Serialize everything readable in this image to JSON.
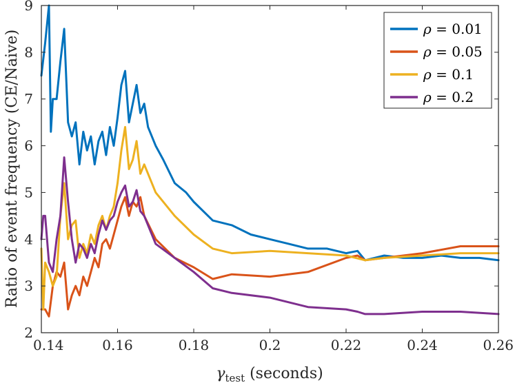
{
  "chart_data": {
    "type": "line",
    "title": "",
    "xlabel_symbol": "γ",
    "xlabel_sub": "test",
    "xlabel_rest": " (seconds)",
    "ylabel": "Ratio of event frequency (CE/Naive)",
    "xlim": [
      0.14,
      0.26
    ],
    "ylim": [
      2,
      9
    ],
    "xticks": [
      "0.14",
      "0.16",
      "0.18",
      "0.2",
      "0.22",
      "0.24",
      "0.26"
    ],
    "xtick_values": [
      0.14,
      0.16,
      0.18,
      0.2,
      0.22,
      0.24,
      0.26
    ],
    "yticks": [
      "2",
      "3",
      "4",
      "5",
      "6",
      "7",
      "8",
      "9"
    ],
    "ytick_values": [
      2,
      3,
      4,
      5,
      6,
      7,
      8,
      9
    ],
    "grid": false,
    "legend_position": "top-right",
    "series": [
      {
        "name": "ρ = 0.01",
        "legend_symbol": "ρ",
        "legend_value": " = 0.01",
        "color": "#0072BD",
        "x": [
          0.14,
          0.141,
          0.142,
          0.1425,
          0.143,
          0.144,
          0.145,
          0.146,
          0.147,
          0.148,
          0.149,
          0.15,
          0.151,
          0.152,
          0.153,
          0.154,
          0.155,
          0.156,
          0.157,
          0.158,
          0.159,
          0.16,
          0.161,
          0.162,
          0.163,
          0.164,
          0.165,
          0.166,
          0.167,
          0.168,
          0.17,
          0.172,
          0.175,
          0.178,
          0.18,
          0.185,
          0.19,
          0.195,
          0.2,
          0.205,
          0.21,
          0.215,
          0.22,
          0.223,
          0.225,
          0.23,
          0.235,
          0.24,
          0.245,
          0.25,
          0.255,
          0.26
        ],
        "values": [
          7.5,
          8.2,
          9.0,
          6.3,
          7.0,
          7.0,
          7.8,
          8.5,
          6.5,
          6.2,
          6.5,
          5.6,
          6.3,
          5.9,
          6.2,
          5.6,
          6.1,
          6.3,
          5.8,
          6.4,
          6.0,
          6.6,
          7.3,
          7.6,
          6.5,
          6.9,
          7.3,
          6.7,
          6.9,
          6.4,
          6.0,
          5.7,
          5.2,
          5.0,
          4.8,
          4.4,
          4.3,
          4.1,
          4.0,
          3.9,
          3.8,
          3.8,
          3.7,
          3.75,
          3.55,
          3.65,
          3.6,
          3.6,
          3.65,
          3.6,
          3.6,
          3.55
        ]
      },
      {
        "name": "ρ = 0.05",
        "legend_symbol": "ρ",
        "legend_value": " = 0.05",
        "color": "#D95319",
        "x": [
          0.14,
          0.141,
          0.142,
          0.143,
          0.144,
          0.145,
          0.146,
          0.147,
          0.148,
          0.149,
          0.15,
          0.151,
          0.152,
          0.153,
          0.154,
          0.155,
          0.156,
          0.157,
          0.158,
          0.159,
          0.16,
          0.161,
          0.162,
          0.163,
          0.164,
          0.165,
          0.166,
          0.167,
          0.17,
          0.175,
          0.18,
          0.185,
          0.19,
          0.2,
          0.21,
          0.22,
          0.223,
          0.225,
          0.23,
          0.24,
          0.25,
          0.26
        ],
        "values": [
          2.5,
          2.5,
          2.35,
          3.0,
          3.3,
          3.2,
          3.5,
          2.5,
          2.8,
          3.0,
          2.8,
          3.2,
          3.0,
          3.3,
          3.6,
          3.4,
          3.9,
          4.0,
          3.8,
          4.1,
          4.4,
          4.7,
          4.9,
          4.5,
          4.8,
          4.7,
          4.9,
          4.5,
          4.0,
          3.6,
          3.4,
          3.15,
          3.25,
          3.2,
          3.3,
          3.6,
          3.65,
          3.55,
          3.6,
          3.7,
          3.85,
          3.85
        ]
      },
      {
        "name": "ρ = 0.1",
        "legend_symbol": "ρ",
        "legend_value": " = 0.1",
        "color": "#EDB120",
        "x": [
          0.14,
          0.1405,
          0.141,
          0.142,
          0.143,
          0.144,
          0.145,
          0.146,
          0.147,
          0.148,
          0.149,
          0.15,
          0.151,
          0.152,
          0.153,
          0.154,
          0.155,
          0.156,
          0.157,
          0.158,
          0.159,
          0.16,
          0.161,
          0.162,
          0.163,
          0.164,
          0.165,
          0.166,
          0.167,
          0.17,
          0.175,
          0.18,
          0.185,
          0.19,
          0.2,
          0.21,
          0.22,
          0.225,
          0.23,
          0.24,
          0.25,
          0.26
        ],
        "values": [
          3.8,
          2.5,
          3.5,
          3.3,
          3.0,
          3.2,
          4.5,
          5.2,
          4.0,
          4.3,
          4.4,
          3.6,
          3.9,
          3.7,
          4.1,
          3.9,
          4.3,
          4.5,
          4.2,
          4.5,
          4.7,
          5.2,
          5.9,
          6.4,
          5.5,
          5.7,
          6.1,
          5.4,
          5.6,
          5.0,
          4.5,
          4.1,
          3.8,
          3.7,
          3.75,
          3.7,
          3.65,
          3.55,
          3.6,
          3.65,
          3.7,
          3.7
        ]
      },
      {
        "name": "ρ = 0.2",
        "legend_symbol": "ρ",
        "legend_value": " = 0.2",
        "color": "#7E2F8E",
        "x": [
          0.14,
          0.1405,
          0.141,
          0.142,
          0.143,
          0.144,
          0.145,
          0.146,
          0.147,
          0.148,
          0.149,
          0.15,
          0.151,
          0.152,
          0.153,
          0.154,
          0.155,
          0.156,
          0.157,
          0.158,
          0.159,
          0.16,
          0.161,
          0.162,
          0.163,
          0.164,
          0.165,
          0.166,
          0.167,
          0.17,
          0.175,
          0.18,
          0.185,
          0.19,
          0.2,
          0.21,
          0.22,
          0.223,
          0.225,
          0.23,
          0.24,
          0.25,
          0.26
        ],
        "values": [
          4.0,
          4.5,
          4.5,
          3.5,
          3.3,
          4.0,
          4.5,
          5.75,
          4.8,
          4.0,
          3.5,
          3.9,
          3.8,
          3.6,
          3.9,
          3.7,
          4.1,
          4.4,
          4.2,
          4.4,
          4.5,
          4.8,
          5.0,
          5.15,
          4.7,
          4.8,
          5.05,
          4.6,
          4.5,
          3.9,
          3.6,
          3.3,
          2.95,
          2.85,
          2.75,
          2.55,
          2.5,
          2.45,
          2.4,
          2.4,
          2.45,
          2.45,
          2.4
        ]
      }
    ]
  }
}
